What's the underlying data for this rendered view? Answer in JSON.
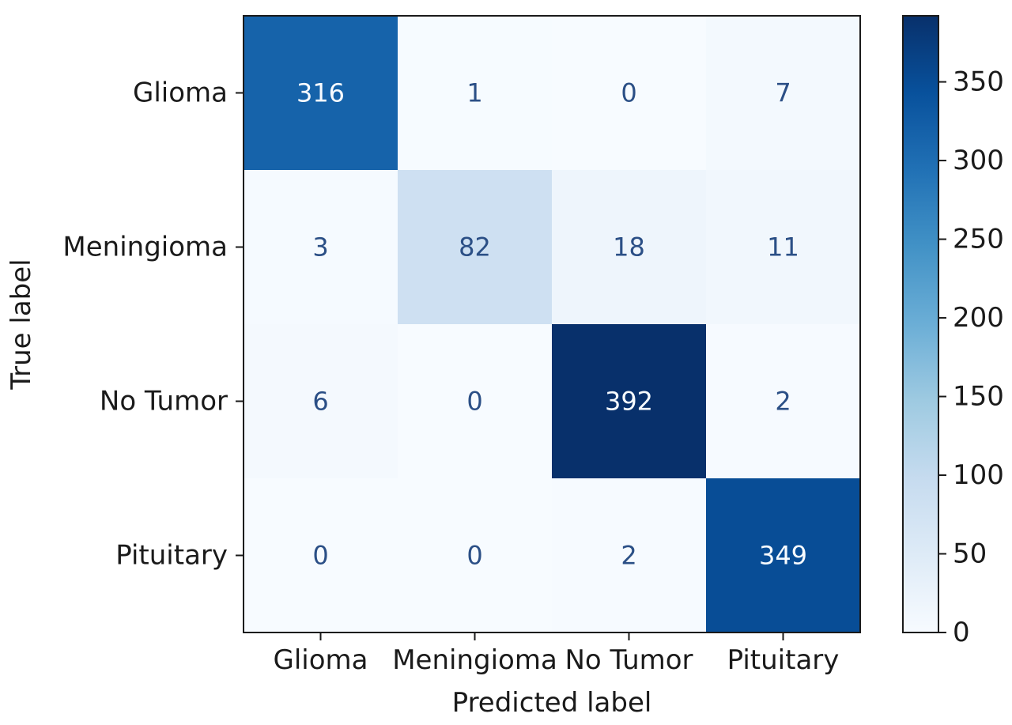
{
  "chart_data": {
    "type": "heatmap",
    "xlabel": "Predicted label",
    "ylabel": "True label",
    "x_categories": [
      "Glioma",
      "Meningioma",
      "No Tumor",
      "Pituitary"
    ],
    "y_categories": [
      "Glioma",
      "Meningioma",
      "No Tumor",
      "Pituitary"
    ],
    "values": [
      [
        316,
        1,
        0,
        7
      ],
      [
        3,
        82,
        18,
        11
      ],
      [
        6,
        0,
        392,
        2
      ],
      [
        0,
        0,
        2,
        349
      ]
    ],
    "colormap": "Blues",
    "colorbar": {
      "min": 0,
      "max": 392,
      "ticks": [
        0,
        50,
        100,
        150,
        200,
        250,
        300,
        350
      ]
    },
    "grid": false
  }
}
